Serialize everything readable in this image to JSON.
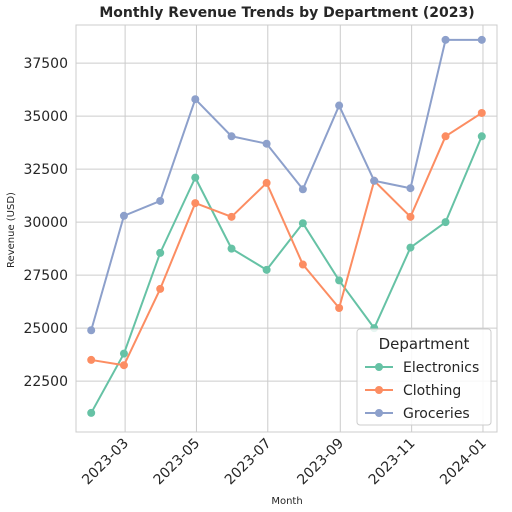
{
  "chart_data": {
    "type": "line",
    "title": "Monthly Revenue Trends by Department (2023)",
    "xlabel": "Month",
    "ylabel": "Revenue (USD)",
    "x": [
      "2023-01-31",
      "2023-02-28",
      "2023-03-31",
      "2023-04-30",
      "2023-05-31",
      "2023-06-30",
      "2023-07-31",
      "2023-08-31",
      "2023-09-30",
      "2023-10-31",
      "2023-11-30",
      "2023-12-31"
    ],
    "x_ticks": [
      "2023-03",
      "2023-05",
      "2023-07",
      "2023-09",
      "2023-11",
      "2024-01"
    ],
    "x_tick_dates": [
      "2023-03-01",
      "2023-05-01",
      "2023-07-01",
      "2023-09-01",
      "2023-11-01",
      "2024-01-01"
    ],
    "xlim": [
      "2023-01-18",
      "2024-01-13"
    ],
    "y_ticks": [
      22500,
      25000,
      27500,
      30000,
      32500,
      35000,
      37500
    ],
    "ylim": [
      20100,
      39300
    ],
    "grid": true,
    "legend": {
      "title": "Department",
      "position": "lower-right"
    },
    "series": [
      {
        "name": "Electronics",
        "color": "#66c2a5",
        "values": [
          21000,
          23800,
          28550,
          32100,
          28750,
          27750,
          29950,
          27250,
          25000,
          28800,
          30000,
          34050
        ]
      },
      {
        "name": "Clothing",
        "color": "#fc8d62",
        "values": [
          23500,
          23250,
          26850,
          30900,
          30250,
          31850,
          28000,
          25950,
          31950,
          30250,
          34050,
          35150
        ]
      },
      {
        "name": "Groceries",
        "color": "#8da0cb",
        "values": [
          24900,
          30300,
          31000,
          35800,
          34050,
          33700,
          31550,
          35500,
          31950,
          31600,
          38600,
          38600
        ]
      }
    ]
  }
}
